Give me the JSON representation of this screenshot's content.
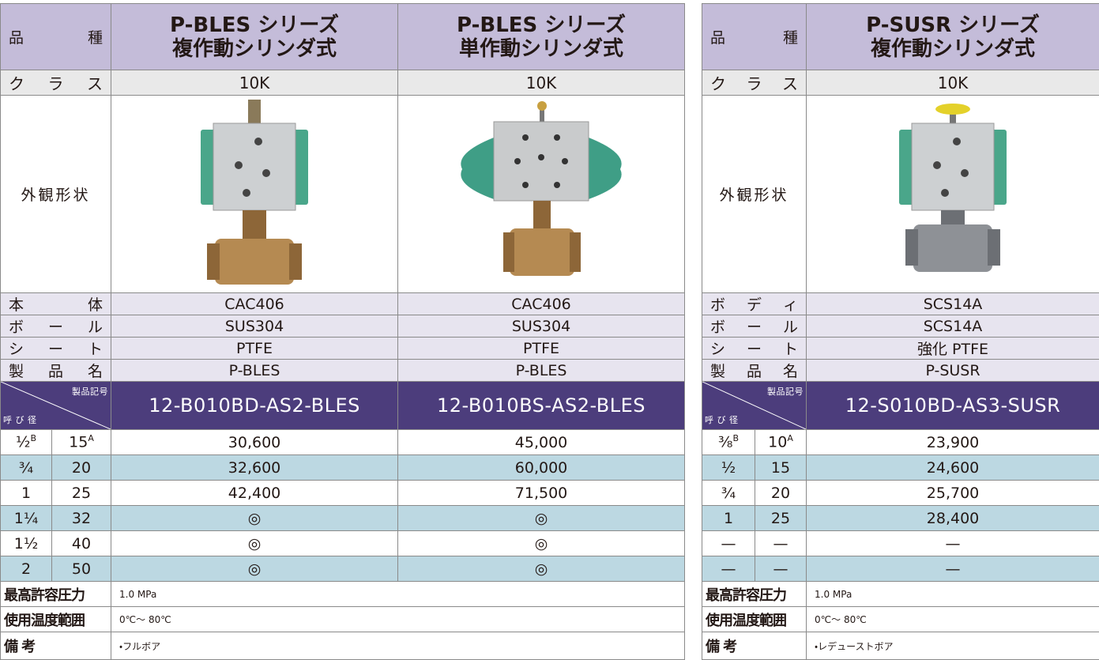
{
  "tables": [
    {
      "product_label": "品 種",
      "products": [
        {
          "name": "P-BLES シリーズ",
          "type": "複作動シリンダ式",
          "class": "10K",
          "code": "12-B010BD-AS2-BLES"
        },
        {
          "name": "P-BLES シリーズ",
          "type": "単作動シリンダ式",
          "class": "10K",
          "code": "12-B010BS-AS2-BLES"
        }
      ],
      "class_label": "ク ラ ス",
      "appearance_label": "外観形状",
      "specs": [
        {
          "label": "本 体",
          "values": [
            "CAC406",
            "CAC406"
          ]
        },
        {
          "label": "ボ ー ル",
          "values": [
            "SUS304",
            "SUS304"
          ]
        },
        {
          "label": "シ ー ト",
          "values": [
            "PTFE",
            "PTFE"
          ]
        },
        {
          "label": "製 品 名",
          "values": [
            "P-BLES",
            "P-BLES"
          ]
        }
      ],
      "code_header": {
        "top": "製品記号",
        "bottom": "呼 び 径"
      },
      "sizes": [
        {
          "inch": "½",
          "inch_unit": "B",
          "mm": "15",
          "mm_unit": "A",
          "prices": [
            "30,600",
            "45,000"
          ]
        },
        {
          "inch": "¾",
          "mm": "20",
          "prices": [
            "32,600",
            "60,000"
          ]
        },
        {
          "inch": "1",
          "mm": "25",
          "prices": [
            "42,400",
            "71,500"
          ]
        },
        {
          "inch": "1¼",
          "mm": "32",
          "prices": [
            "◎",
            "◎"
          ]
        },
        {
          "inch": "1½",
          "mm": "40",
          "prices": [
            "◎",
            "◎"
          ]
        },
        {
          "inch": "2",
          "mm": "50",
          "prices": [
            "◎",
            "◎"
          ]
        }
      ],
      "footer": [
        {
          "label": "最高許容圧力",
          "value": "1.0 MPa"
        },
        {
          "label": "使用温度範囲",
          "value": "0℃～ 80℃"
        },
        {
          "label": "備 考",
          "value": "・フルボア"
        }
      ]
    },
    {
      "product_label": "品 種",
      "products": [
        {
          "name": "P-SUSR シリーズ",
          "type": "複作動シリンダ式",
          "class": "10K",
          "code": "12-S010BD-AS3-SUSR"
        }
      ],
      "class_label": "ク ラ ス",
      "appearance_label": "外観形状",
      "specs": [
        {
          "label": "ボ デ ィ",
          "values": [
            "SCS14A"
          ]
        },
        {
          "label": "ボ ー ル",
          "values": [
            "SCS14A"
          ]
        },
        {
          "label": "シ ー ト",
          "values": [
            "強化 PTFE"
          ]
        },
        {
          "label": "製 品 名",
          "values": [
            "P-SUSR"
          ]
        }
      ],
      "code_header": {
        "top": "製品記号",
        "bottom": "呼 び 径"
      },
      "sizes": [
        {
          "inch": "⅜",
          "inch_unit": "B",
          "mm": "10",
          "mm_unit": "A",
          "prices": [
            "23,900"
          ]
        },
        {
          "inch": "½",
          "mm": "15",
          "prices": [
            "24,600"
          ]
        },
        {
          "inch": "¾",
          "mm": "20",
          "prices": [
            "25,700"
          ]
        },
        {
          "inch": "1",
          "mm": "25",
          "prices": [
            "28,400"
          ]
        },
        {
          "inch": "—",
          "mm": "—",
          "prices": [
            "—"
          ]
        },
        {
          "inch": "—",
          "mm": "—",
          "prices": [
            "—"
          ]
        }
      ],
      "footer": [
        {
          "label": "最高許容圧力",
          "value": "1.0 MPa"
        },
        {
          "label": "使用温度範囲",
          "value": "0℃～ 80℃"
        },
        {
          "label": "備 考",
          "value": "・レデューストボア"
        }
      ]
    }
  ]
}
